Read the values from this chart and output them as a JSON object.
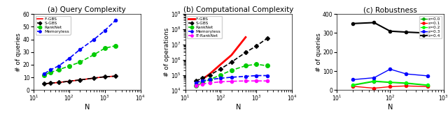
{
  "panel_a": {
    "title": "(a) Query Complexity",
    "xlabel": "N",
    "ylabel": "# of queries",
    "xlim": [
      10,
      10000
    ],
    "ylim": [
      0,
      60
    ],
    "yticks": [
      0,
      10,
      20,
      30,
      40,
      50,
      60
    ],
    "series": [
      {
        "label": "F-GBS",
        "color": "#FF0000",
        "marker": "None",
        "linestyle": "-",
        "linewidth": 1.2,
        "x": [
          20,
          30,
          50,
          100,
          200,
          500,
          1000,
          2000
        ],
        "y": [
          5.0,
          5.5,
          6.0,
          7.0,
          8.0,
          9.5,
          10.5,
          11.0
        ]
      },
      {
        "label": "S-GBS",
        "color": "#000000",
        "marker": "D",
        "markersize": 3,
        "linestyle": "--",
        "linewidth": 1.2,
        "x": [
          20,
          30,
          50,
          100,
          200,
          500,
          1000,
          2000
        ],
        "y": [
          5.0,
          5.5,
          6.0,
          7.0,
          8.0,
          9.5,
          10.5,
          11.0
        ]
      },
      {
        "label": "RankNet",
        "color": "#00CC00",
        "marker": "o",
        "markersize": 4,
        "linestyle": "--",
        "linewidth": 1.2,
        "x": [
          20,
          30,
          50,
          100,
          200,
          500,
          1000,
          2000
        ],
        "y": [
          12,
          14,
          16,
          19,
          22,
          28,
          33,
          35
        ]
      },
      {
        "label": "Memoryless",
        "color": "#0000FF",
        "marker": "o",
        "markersize": 3,
        "linestyle": "--",
        "linewidth": 1.2,
        "x": [
          20,
          30,
          50,
          100,
          200,
          500,
          1000,
          2000
        ],
        "y": [
          13,
          16,
          19,
          25,
          32,
          40,
          47,
          55
        ]
      }
    ]
  },
  "panel_b": {
    "title": "(b) Computational Complexity",
    "xlabel": "N",
    "ylabel": "# of operations",
    "xlim": [
      10,
      10000
    ],
    "ylim": [
      10000.0,
      1000000000.0
    ],
    "series": [
      {
        "label": "F-GBS",
        "color": "#FF0000",
        "marker": "None",
        "linestyle": "-",
        "linewidth": 2.0,
        "x": [
          30,
          50,
          100,
          200,
          500
        ],
        "y": [
          50000,
          120000,
          500000,
          2000000,
          30000000
        ]
      },
      {
        "label": "S-GBS",
        "color": "#000000",
        "marker": "D",
        "markersize": 3,
        "linestyle": "--",
        "linewidth": 1.2,
        "x": [
          20,
          30,
          50,
          100,
          200,
          500,
          1000,
          2000
        ],
        "y": [
          40000,
          60000,
          100000,
          250000,
          700000,
          3000000,
          8000000,
          25000000
        ]
      },
      {
        "label": "RankNet",
        "color": "#00CC00",
        "marker": "o",
        "markersize": 4,
        "linestyle": "--",
        "linewidth": 1.2,
        "x": [
          20,
          30,
          50,
          100,
          200,
          500,
          1000,
          2000
        ],
        "y": [
          20000,
          30000,
          50000,
          100000,
          200000,
          400000,
          500000,
          400000
        ]
      },
      {
        "label": "Memoryless",
        "color": "#0000FF",
        "marker": "o",
        "markersize": 3,
        "linestyle": "--",
        "linewidth": 1.2,
        "x": [
          20,
          30,
          50,
          100,
          200,
          500,
          1000,
          2000
        ],
        "y": [
          30000,
          40000,
          50000,
          60000,
          70000,
          80000,
          90000,
          90000
        ]
      },
      {
        "label": "IT-RankNet",
        "color": "#FF00FF",
        "marker": "o",
        "markersize": 3,
        "linestyle": "--",
        "linewidth": 1.2,
        "x": [
          20,
          30,
          50,
          100,
          200,
          500,
          1000,
          2000
        ],
        "y": [
          20000,
          25000,
          30000,
          35000,
          38000,
          40000,
          40000,
          40000
        ]
      }
    ]
  },
  "panel_c": {
    "title": "(c) Robustness",
    "xlabel": "N",
    "ylabel": "# of queries",
    "xlim": [
      10,
      1000
    ],
    "ylim": [
      0,
      400
    ],
    "yticks": [
      0,
      100,
      200,
      300,
      400
    ],
    "series": [
      {
        "label": "ε=0.0",
        "color": "#00AA00",
        "marker": "o",
        "markersize": 3,
        "linestyle": "-",
        "linewidth": 1.0,
        "x": [
          20,
          50,
          100,
          200,
          500
        ],
        "y": [
          25,
          45,
          40,
          35,
          25
        ]
      },
      {
        "label": "ε=0.1",
        "color": "#FF0000",
        "marker": "o",
        "markersize": 3,
        "linestyle": "-",
        "linewidth": 1.0,
        "x": [
          20,
          50,
          100,
          200,
          500
        ],
        "y": [
          20,
          10,
          18,
          22,
          18
        ]
      },
      {
        "label": "ε=0.2",
        "color": "#00FF00",
        "marker": "o",
        "markersize": 3,
        "linestyle": "-",
        "linewidth": 1.0,
        "x": [
          20,
          50,
          100,
          200,
          500
        ],
        "y": [
          28,
          48,
          42,
          38,
          27
        ]
      },
      {
        "label": "ε=0.3",
        "color": "#0000FF",
        "marker": "o",
        "markersize": 3,
        "linestyle": "-",
        "linewidth": 1.0,
        "x": [
          20,
          50,
          100,
          200,
          500
        ],
        "y": [
          55,
          65,
          110,
          85,
          75
        ]
      },
      {
        "label": "ε=0.4",
        "color": "#000000",
        "marker": "o",
        "markersize": 3,
        "linestyle": "-",
        "linewidth": 1.5,
        "x": [
          20,
          50,
          100,
          200,
          500
        ],
        "y": [
          350,
          355,
          310,
          305,
          300
        ]
      }
    ]
  },
  "fig_bg": "#ffffff",
  "ax_bg": "#ffffff"
}
